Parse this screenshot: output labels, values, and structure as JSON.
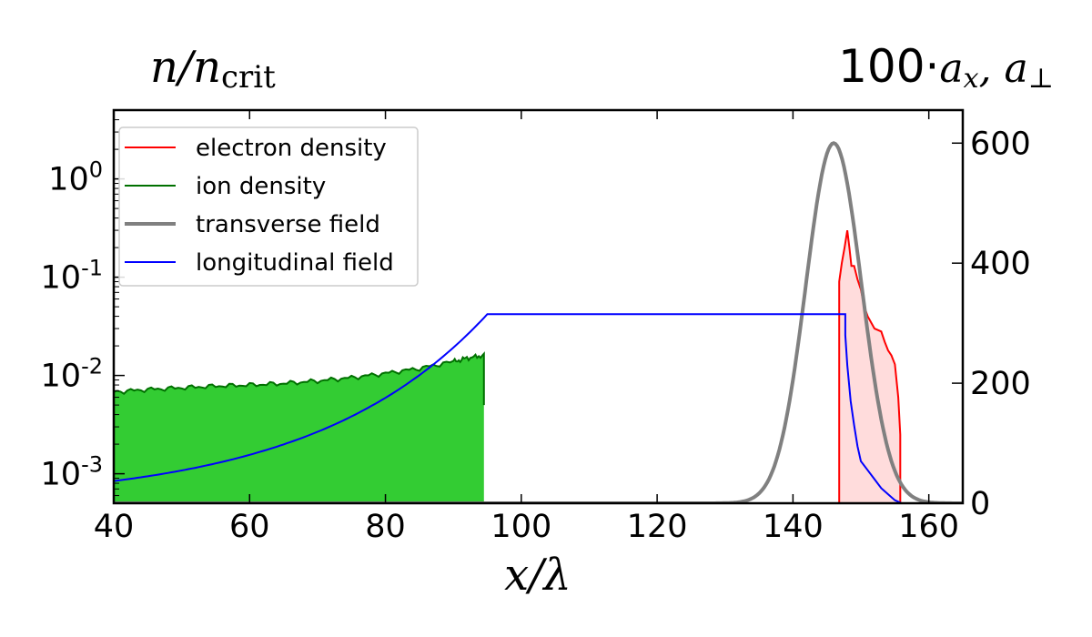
{
  "chart_data": {
    "type": "line",
    "left_axis_title": "n/n",
    "left_axis_title_sub": "crit",
    "right_axis_title_prefix": "100·",
    "right_axis_title_a1": "a",
    "right_axis_title_a1_sub": "x",
    "right_axis_title_sep": ",  ",
    "right_axis_title_a2": "a",
    "right_axis_title_a2_sub": "⊥",
    "xlabel": "x/λ",
    "xlim": [
      40,
      165
    ],
    "x_ticks": [
      "40",
      "60",
      "80",
      "100",
      "120",
      "140",
      "160"
    ],
    "x_tick_values": [
      40,
      60,
      80,
      100,
      120,
      140,
      160
    ],
    "left_ylim_log10": [
      -3.3,
      0.7
    ],
    "left_scale": "log",
    "left_ticks": [
      {
        "base": "10",
        "exp": "0",
        "value": 0
      },
      {
        "base": "10",
        "exp": "-1",
        "value": -1
      },
      {
        "base": "10",
        "exp": "-2",
        "value": -2
      },
      {
        "base": "10",
        "exp": "-3",
        "value": -3
      }
    ],
    "right_ylim": [
      0,
      655
    ],
    "right_ticks": [
      "0",
      "200",
      "400",
      "600"
    ],
    "right_tick_values": [
      0,
      200,
      400,
      600
    ],
    "legend_position": "upper-left",
    "series": [
      {
        "name": "electron density",
        "axis": "left",
        "color": "#ff0000",
        "fill": "#ffdcdc",
        "x": [
          146.8,
          146.8,
          147.2,
          147.6,
          148.0,
          148.3,
          148.6,
          149.0,
          149.5,
          150.0,
          150.5,
          151.0,
          152.0,
          153.0,
          153.5,
          154.0,
          154.5,
          155.0,
          155.5,
          155.8,
          155.8
        ],
        "y": [
          0.0005,
          0.09,
          0.14,
          0.2,
          0.3,
          0.2,
          0.13,
          0.13,
          0.095,
          0.075,
          0.05,
          0.04,
          0.03,
          0.028,
          0.022,
          0.018,
          0.016,
          0.013,
          0.006,
          0.0025,
          0.0005
        ]
      },
      {
        "name": "ion density",
        "axis": "left",
        "color": "#007000",
        "fill": "#33cc33",
        "x": [
          40,
          45,
          50,
          55,
          60,
          65,
          70,
          75,
          80,
          85,
          90,
          92,
          94.5,
          94.5
        ],
        "y": [
          0.0068,
          0.0072,
          0.0075,
          0.0078,
          0.008,
          0.0083,
          0.0088,
          0.0095,
          0.0105,
          0.0118,
          0.0138,
          0.015,
          0.016,
          0.005
        ]
      },
      {
        "name": "transverse field",
        "axis": "right",
        "color": "#808080",
        "width": 4,
        "gauss": {
          "center": 146,
          "sigma": 4.1,
          "amp": 600
        }
      },
      {
        "name": "longitudinal field",
        "axis": "right",
        "color": "#0000ff",
        "x": [
          40,
          50,
          60,
          70,
          80,
          90,
          95,
          147.7,
          147.7,
          148.0,
          148.5,
          149.0,
          149.5,
          150.0,
          151.0,
          152.0,
          153.0,
          154.0,
          155.0,
          156.0
        ],
        "y": [
          37,
          70,
          107,
          152,
          204,
          268,
          315,
          315,
          280,
          230,
          170,
          130,
          95,
          70,
          55,
          40,
          25,
          15,
          5,
          0
        ]
      }
    ]
  }
}
